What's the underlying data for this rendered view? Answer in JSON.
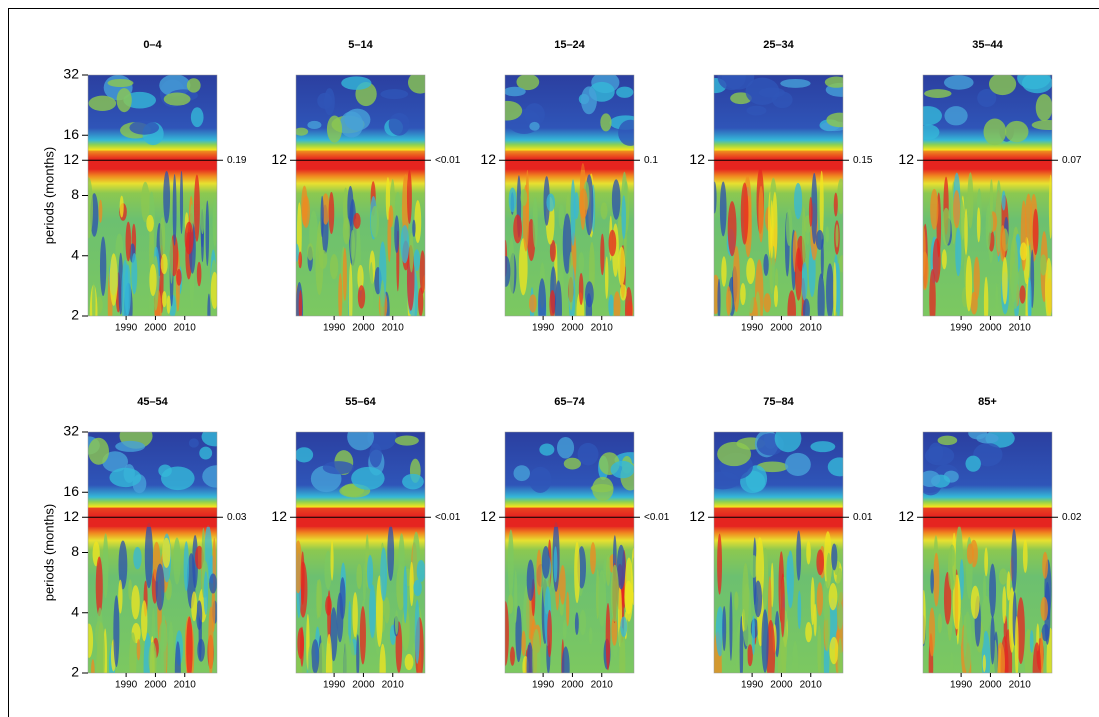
{
  "chart_data": [
    {
      "type": "heatmap",
      "title": "0–4",
      "ylabel": "periods (months)",
      "ylim": [
        2,
        32
      ],
      "log_y": true,
      "yticks": [
        2,
        4,
        8,
        12,
        16,
        32
      ],
      "xlim": [
        1977,
        2021
      ],
      "xticks": [
        1990,
        2000,
        2010
      ],
      "hline": 12,
      "annotation": "0.19"
    },
    {
      "type": "heatmap",
      "title": "5–14",
      "ylim": [
        2,
        32
      ],
      "log_y": true,
      "yticks": [
        12
      ],
      "xlim": [
        1977,
        2021
      ],
      "xticks": [
        1990,
        2000,
        2010
      ],
      "hline": 12,
      "annotation": "<0.01"
    },
    {
      "type": "heatmap",
      "title": "15–24",
      "ylim": [
        2,
        32
      ],
      "log_y": true,
      "yticks": [
        12
      ],
      "xlim": [
        1977,
        2021
      ],
      "xticks": [
        1990,
        2000,
        2010
      ],
      "hline": 12,
      "annotation": "0.1"
    },
    {
      "type": "heatmap",
      "title": "25–34",
      "ylim": [
        2,
        32
      ],
      "log_y": true,
      "yticks": [
        12
      ],
      "xlim": [
        1977,
        2021
      ],
      "xticks": [
        1990,
        2000,
        2010
      ],
      "hline": 12,
      "annotation": "0.15"
    },
    {
      "type": "heatmap",
      "title": "35–44",
      "ylim": [
        2,
        32
      ],
      "log_y": true,
      "yticks": [
        12
      ],
      "xlim": [
        1977,
        2021
      ],
      "xticks": [
        1990,
        2000,
        2010
      ],
      "hline": 12,
      "annotation": "0.07"
    },
    {
      "type": "heatmap",
      "title": "45–54",
      "ylabel": "periods (months)",
      "ylim": [
        2,
        32
      ],
      "log_y": true,
      "yticks": [
        2,
        4,
        8,
        12,
        16,
        32
      ],
      "xlim": [
        1977,
        2021
      ],
      "xticks": [
        1990,
        2000,
        2010
      ],
      "hline": 12,
      "annotation": "0.03"
    },
    {
      "type": "heatmap",
      "title": "55–64",
      "ylim": [
        2,
        32
      ],
      "log_y": true,
      "yticks": [
        12
      ],
      "xlim": [
        1977,
        2021
      ],
      "xticks": [
        1990,
        2000,
        2010
      ],
      "hline": 12,
      "annotation": "<0.01"
    },
    {
      "type": "heatmap",
      "title": "65–74",
      "ylim": [
        2,
        32
      ],
      "log_y": true,
      "yticks": [
        12
      ],
      "xlim": [
        1977,
        2021
      ],
      "xticks": [
        1990,
        2000,
        2010
      ],
      "hline": 12,
      "annotation": "<0.01"
    },
    {
      "type": "heatmap",
      "title": "75–84",
      "ylim": [
        2,
        32
      ],
      "log_y": true,
      "yticks": [
        12
      ],
      "xlim": [
        1977,
        2021
      ],
      "xticks": [
        1990,
        2000,
        2010
      ],
      "hline": 12,
      "annotation": "0.01"
    },
    {
      "type": "heatmap",
      "title": "85+",
      "ylim": [
        2,
        32
      ],
      "log_y": true,
      "yticks": [
        12
      ],
      "xlim": [
        1977,
        2021
      ],
      "xticks": [
        1990,
        2000,
        2010
      ],
      "hline": 12,
      "annotation": "0.02"
    }
  ]
}
